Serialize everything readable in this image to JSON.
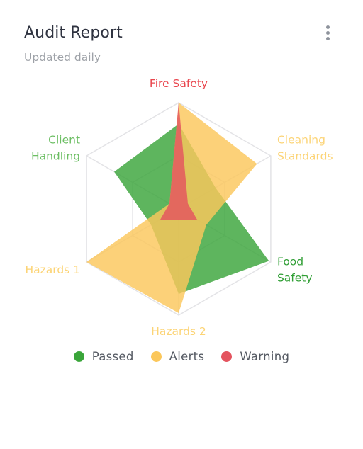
{
  "card": {
    "title": "Audit Report",
    "subtitle": "Updated daily",
    "menu_icon": "more-vertical-icon"
  },
  "chart_data": {
    "type": "radar",
    "title": "",
    "categories": [
      [
        "Fire Safety"
      ],
      [
        "Cleaning",
        "Standards"
      ],
      [
        "Food",
        "Safety"
      ],
      [
        "Hazards 2"
      ],
      [
        "Hazards 1"
      ],
      [
        "Client",
        "Handling"
      ]
    ],
    "range": [
      0,
      100
    ],
    "grid": true,
    "legend_position": "bottom",
    "series": [
      {
        "name": "Passed",
        "color": "#3aa53a",
        "values": [
          80,
          40,
          98,
          80,
          30,
          70
        ]
      },
      {
        "name": "Alerts",
        "color": "#fbc75b",
        "values": [
          100,
          85,
          30,
          98,
          100,
          10
        ]
      },
      {
        "name": "Warning",
        "color": "#e4545f",
        "values": [
          100,
          10,
          20,
          10,
          20,
          10
        ]
      }
    ],
    "category_colors": [
      "#e9454d",
      "#fcd476",
      "#2f9e34",
      "#fcd476",
      "#fcd476",
      "#6cbe63"
    ]
  }
}
